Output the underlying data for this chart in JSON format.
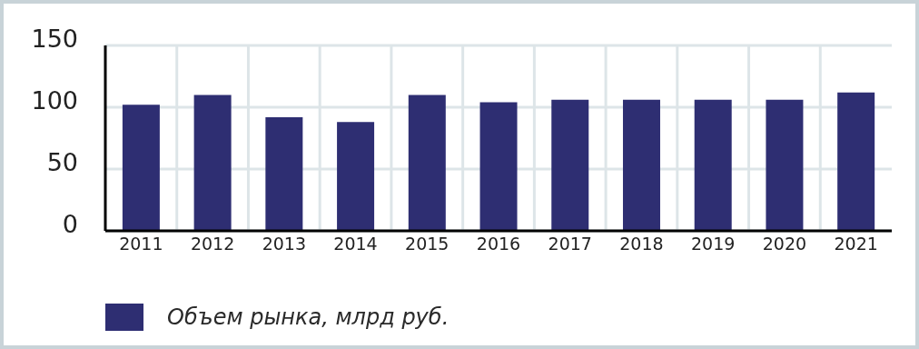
{
  "chart_data": {
    "type": "bar",
    "categories": [
      "2011",
      "2012",
      "2013",
      "2014",
      "2015",
      "2016",
      "2017",
      "2018",
      "2019",
      "2020",
      "2021"
    ],
    "series": [
      {
        "name": "Объем рынка, млрд руб.",
        "color": "#2e2e72",
        "values": [
          102,
          110,
          92,
          88,
          110,
          104,
          106,
          106,
          106,
          106,
          112
        ]
      }
    ],
    "ylim": [
      0,
      150
    ],
    "yticks": [
      0,
      50,
      100,
      150
    ],
    "grid": true,
    "legend": "bottom"
  }
}
